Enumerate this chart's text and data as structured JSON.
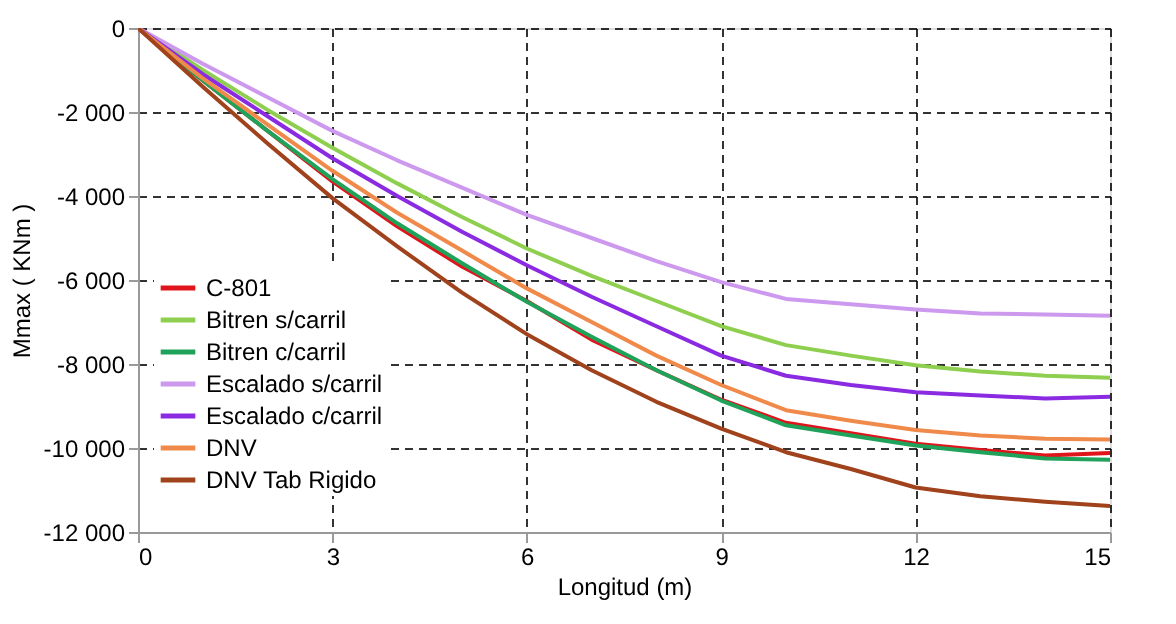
{
  "chart_data": {
    "type": "line",
    "xlabel": "Longitud  (m)",
    "ylabel": "Mmax  ( KNm )",
    "x": [
      0,
      1,
      2,
      3,
      4,
      5,
      6,
      7,
      8,
      9,
      10,
      11,
      12,
      13,
      14,
      15
    ],
    "xlim": [
      0,
      15
    ],
    "xticks": [
      0,
      3,
      6,
      9,
      12,
      15
    ],
    "ylim": [
      -12000,
      0
    ],
    "yticks": [
      {
        "value": -12000,
        "label": "-12 000"
      },
      {
        "value": -10000,
        "label": "-10 000"
      },
      {
        "value": -8000,
        "label": "-8 000"
      },
      {
        "value": -6000,
        "label": "-6 000"
      },
      {
        "value": -4000,
        "label": "-4 000"
      },
      {
        "value": -2000,
        "label": "-2 000"
      },
      0
    ],
    "grid": true,
    "legend": "bottom left",
    "line_style": "solid",
    "marker": "none",
    "series": [
      {
        "name": "C-801",
        "color": "#e0141b",
        "values": [
          0,
          -1250,
          -2450,
          -3650,
          -4720,
          -5680,
          -6500,
          -7420,
          -8150,
          -8850,
          -9400,
          -9650,
          -9900,
          -10050,
          -10180,
          -10120
        ]
      },
      {
        "name": "Bitren s/carril",
        "color": "#8fcf4f",
        "values": [
          0,
          -1000,
          -1950,
          -2850,
          -3700,
          -4500,
          -5250,
          -5900,
          -6500,
          -7100,
          -7550,
          -7800,
          -8030,
          -8180,
          -8280,
          -8330
        ]
      },
      {
        "name": "Bitren c/carril",
        "color": "#1fa35a",
        "values": [
          0,
          -1250,
          -2450,
          -3600,
          -4650,
          -5600,
          -6520,
          -7350,
          -8150,
          -8870,
          -9460,
          -9700,
          -9940,
          -10100,
          -10250,
          -10280
        ]
      },
      {
        "name": "Escalado s/carril",
        "color": "#cc99ee",
        "values": [
          0,
          -850,
          -1650,
          -2450,
          -3150,
          -3800,
          -4450,
          -5000,
          -5550,
          -6050,
          -6450,
          -6580,
          -6700,
          -6800,
          -6820,
          -6850
        ]
      },
      {
        "name": "Escalado c/carril",
        "color": "#8a2be2",
        "values": [
          0,
          -1100,
          -2100,
          -3100,
          -4000,
          -4850,
          -5650,
          -6400,
          -7100,
          -7800,
          -8280,
          -8500,
          -8670,
          -8750,
          -8820,
          -8780
        ]
      },
      {
        "name": "DNV",
        "color": "#f08a4b",
        "values": [
          0,
          -1200,
          -2300,
          -3400,
          -4400,
          -5300,
          -6200,
          -7000,
          -7800,
          -8500,
          -9100,
          -9350,
          -9570,
          -9700,
          -9780,
          -9800
        ]
      },
      {
        "name": "DNV Tab Rigido",
        "color": "#a0421b",
        "values": [
          0,
          -1400,
          -2750,
          -4050,
          -5200,
          -6300,
          -7290,
          -8150,
          -8900,
          -9540,
          -10100,
          -10500,
          -10940,
          -11150,
          -11280,
          -11380
        ]
      }
    ]
  }
}
